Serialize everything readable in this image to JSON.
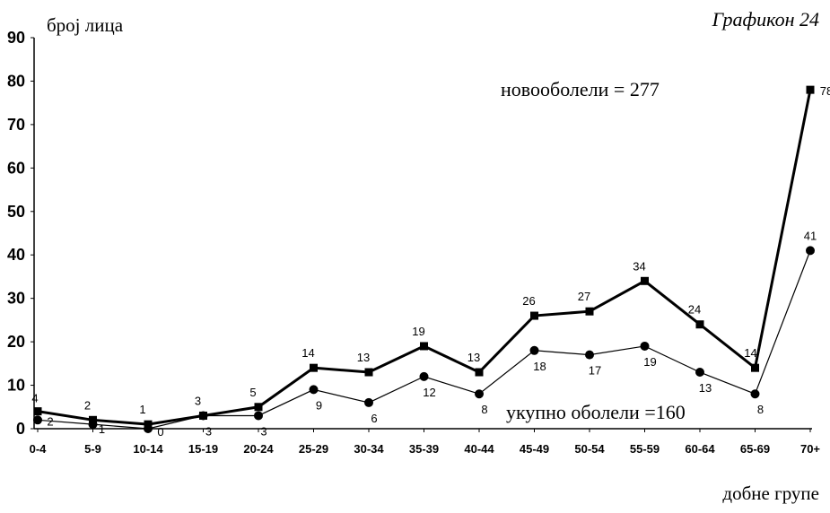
{
  "chart_data": {
    "type": "line",
    "title": "Графикон 24",
    "ylabel": "број лица",
    "xlabel": "добне групе",
    "ylim": [
      0,
      90
    ],
    "yticks": [
      0,
      10,
      20,
      30,
      40,
      50,
      60,
      70,
      80,
      90
    ],
    "grid": false,
    "categories": [
      "0-4",
      "5-9",
      "10-14",
      "15-19",
      "20-24",
      "25-29",
      "30-34",
      "35-39",
      "40-44",
      "45-49",
      "50-54",
      "55-59",
      "60-64",
      "65-69",
      "70+"
    ],
    "series": [
      {
        "name": "новооболели = 277",
        "marker": "square",
        "color": "#000000",
        "values": [
          4,
          2,
          1,
          3,
          5,
          14,
          13,
          19,
          13,
          26,
          27,
          34,
          24,
          14,
          78
        ]
      },
      {
        "name": "укупно оболели =160",
        "marker": "circle",
        "color": "#000000",
        "values": [
          2,
          1,
          0,
          3,
          3,
          9,
          6,
          12,
          8,
          18,
          17,
          19,
          13,
          8,
          41
        ]
      }
    ]
  }
}
